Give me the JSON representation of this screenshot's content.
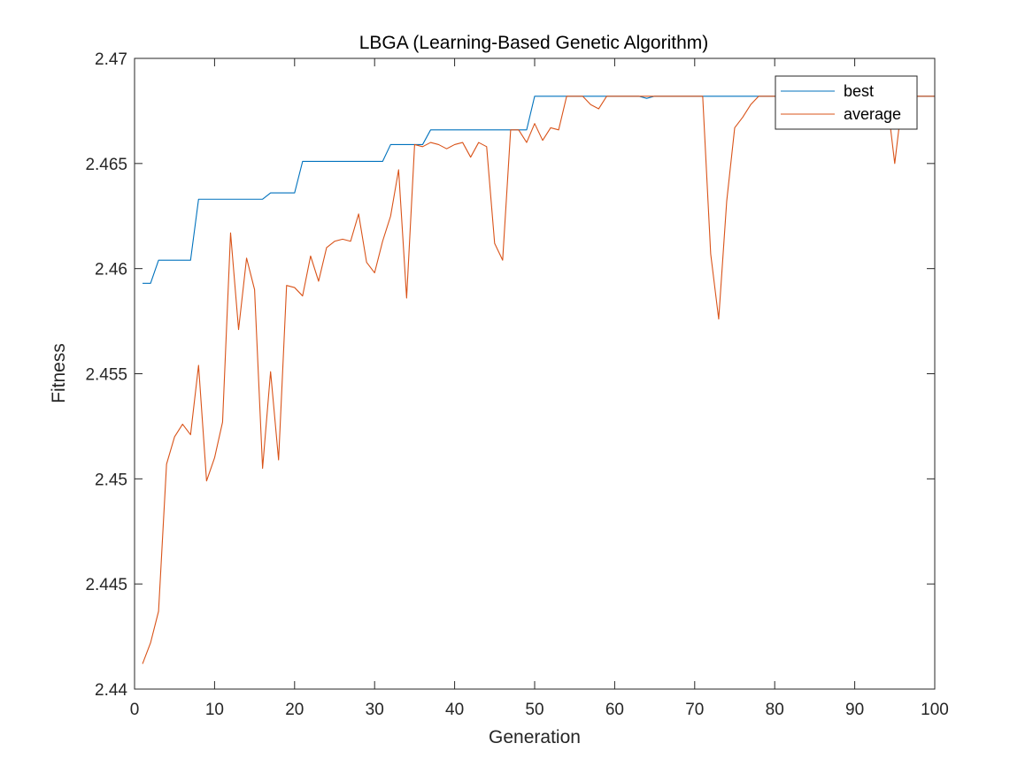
{
  "chart_data": {
    "type": "line",
    "title": "LBGA (Learning-Based Genetic Algorithm)",
    "xlabel": "Generation",
    "ylabel": "Fitness",
    "xlim": [
      0,
      100
    ],
    "ylim": [
      2.44,
      2.47
    ],
    "xticks": [
      0,
      10,
      20,
      30,
      40,
      50,
      60,
      70,
      80,
      90,
      100
    ],
    "yticks": [
      2.44,
      2.445,
      2.45,
      2.455,
      2.46,
      2.465,
      2.47
    ],
    "xtick_labels": [
      "0",
      "10",
      "20",
      "30",
      "40",
      "50",
      "60",
      "70",
      "80",
      "90",
      "100"
    ],
    "ytick_labels": [
      "2.44",
      "2.445",
      "2.45",
      "2.455",
      "2.46",
      "2.465",
      "2.47"
    ],
    "grid": false,
    "legend_position": "top-right",
    "series": [
      {
        "name": "best",
        "color": "#0072BD",
        "x": [
          1,
          2,
          3,
          4,
          5,
          6,
          7,
          8,
          9,
          10,
          11,
          12,
          13,
          14,
          15,
          16,
          17,
          18,
          19,
          20,
          21,
          22,
          23,
          24,
          25,
          26,
          27,
          28,
          29,
          30,
          31,
          32,
          33,
          34,
          35,
          36,
          37,
          38,
          39,
          40,
          41,
          42,
          43,
          44,
          45,
          46,
          47,
          48,
          49,
          50,
          51,
          52,
          53,
          54,
          55,
          56,
          57,
          58,
          59,
          60,
          61,
          62,
          63,
          64,
          65,
          66,
          67,
          68,
          69,
          70,
          71,
          72,
          73,
          74,
          75,
          76,
          77,
          78,
          79,
          80,
          81,
          82,
          83,
          84,
          85,
          86,
          87,
          88,
          89,
          90,
          91,
          92,
          93,
          94,
          95,
          96,
          97,
          98,
          99,
          100
        ],
        "values": [
          2.4593,
          2.4593,
          2.4604,
          2.4604,
          2.4604,
          2.4604,
          2.4604,
          2.4633,
          2.4633,
          2.4633,
          2.4633,
          2.4633,
          2.4633,
          2.4633,
          2.4633,
          2.4633,
          2.4636,
          2.4636,
          2.4636,
          2.4636,
          2.4651,
          2.4651,
          2.4651,
          2.4651,
          2.4651,
          2.4651,
          2.4651,
          2.4651,
          2.4651,
          2.4651,
          2.4651,
          2.4659,
          2.4659,
          2.4659,
          2.4659,
          2.4659,
          2.4666,
          2.4666,
          2.4666,
          2.4666,
          2.4666,
          2.4666,
          2.4666,
          2.4666,
          2.4666,
          2.4666,
          2.4666,
          2.4666,
          2.4666,
          2.4682,
          2.4682,
          2.4682,
          2.4682,
          2.4682,
          2.4682,
          2.4682,
          2.4682,
          2.4682,
          2.4682,
          2.4682,
          2.4682,
          2.4682,
          2.4682,
          2.4681,
          2.4682,
          2.4682,
          2.4682,
          2.4682,
          2.4682,
          2.4682,
          2.4682,
          2.4682,
          2.4682,
          2.4682,
          2.4682,
          2.4682,
          2.4682,
          2.4682,
          2.4682,
          2.4682,
          2.4682,
          2.4682,
          2.4682,
          2.4682,
          2.4682,
          2.4682,
          2.4682,
          2.4682,
          2.4682,
          2.4682,
          2.4682,
          2.4682,
          2.4682,
          2.4682,
          2.4682,
          2.4682,
          2.4682,
          2.4682,
          2.4682,
          2.4682
        ]
      },
      {
        "name": "average",
        "color": "#D95319",
        "x": [
          1,
          2,
          3,
          4,
          5,
          6,
          7,
          8,
          9,
          10,
          11,
          12,
          13,
          14,
          15,
          16,
          17,
          18,
          19,
          20,
          21,
          22,
          23,
          24,
          25,
          26,
          27,
          28,
          29,
          30,
          31,
          32,
          33,
          34,
          35,
          36,
          37,
          38,
          39,
          40,
          41,
          42,
          43,
          44,
          45,
          46,
          47,
          48,
          49,
          50,
          51,
          52,
          53,
          54,
          55,
          56,
          57,
          58,
          59,
          60,
          61,
          62,
          63,
          64,
          65,
          66,
          67,
          68,
          69,
          70,
          71,
          72,
          73,
          74,
          75,
          76,
          77,
          78,
          79,
          80,
          81,
          82,
          83,
          84,
          85,
          86,
          87,
          88,
          89,
          90,
          91,
          92,
          93,
          94,
          95,
          96,
          97,
          98,
          99,
          100
        ],
        "values": [
          2.4412,
          2.4422,
          2.4437,
          2.4507,
          2.452,
          2.4526,
          2.4521,
          2.4554,
          2.4499,
          2.451,
          2.4527,
          2.4617,
          2.4571,
          2.4605,
          2.459,
          2.4505,
          2.4551,
          2.4509,
          2.4592,
          2.4591,
          2.4587,
          2.4606,
          2.4594,
          2.461,
          2.4613,
          2.4614,
          2.4613,
          2.4626,
          2.4603,
          2.4598,
          2.4613,
          2.4625,
          2.4647,
          2.4586,
          2.4659,
          2.4658,
          2.466,
          2.4659,
          2.4657,
          2.4659,
          2.466,
          2.4653,
          2.466,
          2.4658,
          2.4612,
          2.4604,
          2.4666,
          2.4666,
          2.466,
          2.4669,
          2.4661,
          2.4667,
          2.4666,
          2.4682,
          2.4682,
          2.4682,
          2.4678,
          2.4676,
          2.4682,
          2.4682,
          2.4682,
          2.4682,
          2.4682,
          2.4682,
          2.4682,
          2.4682,
          2.4682,
          2.4682,
          2.4682,
          2.4682,
          2.4682,
          2.4607,
          2.4576,
          2.4632,
          2.4667,
          2.4672,
          2.4678,
          2.4682,
          2.4682,
          2.4682,
          2.4682,
          2.4682,
          2.4682,
          2.4682,
          2.4682,
          2.4682,
          2.4682,
          2.4682,
          2.4682,
          2.4682,
          2.4682,
          2.4682,
          2.4682,
          2.4682,
          2.465,
          2.4682,
          2.4682,
          2.4682,
          2.4682,
          2.4682
        ]
      }
    ]
  }
}
